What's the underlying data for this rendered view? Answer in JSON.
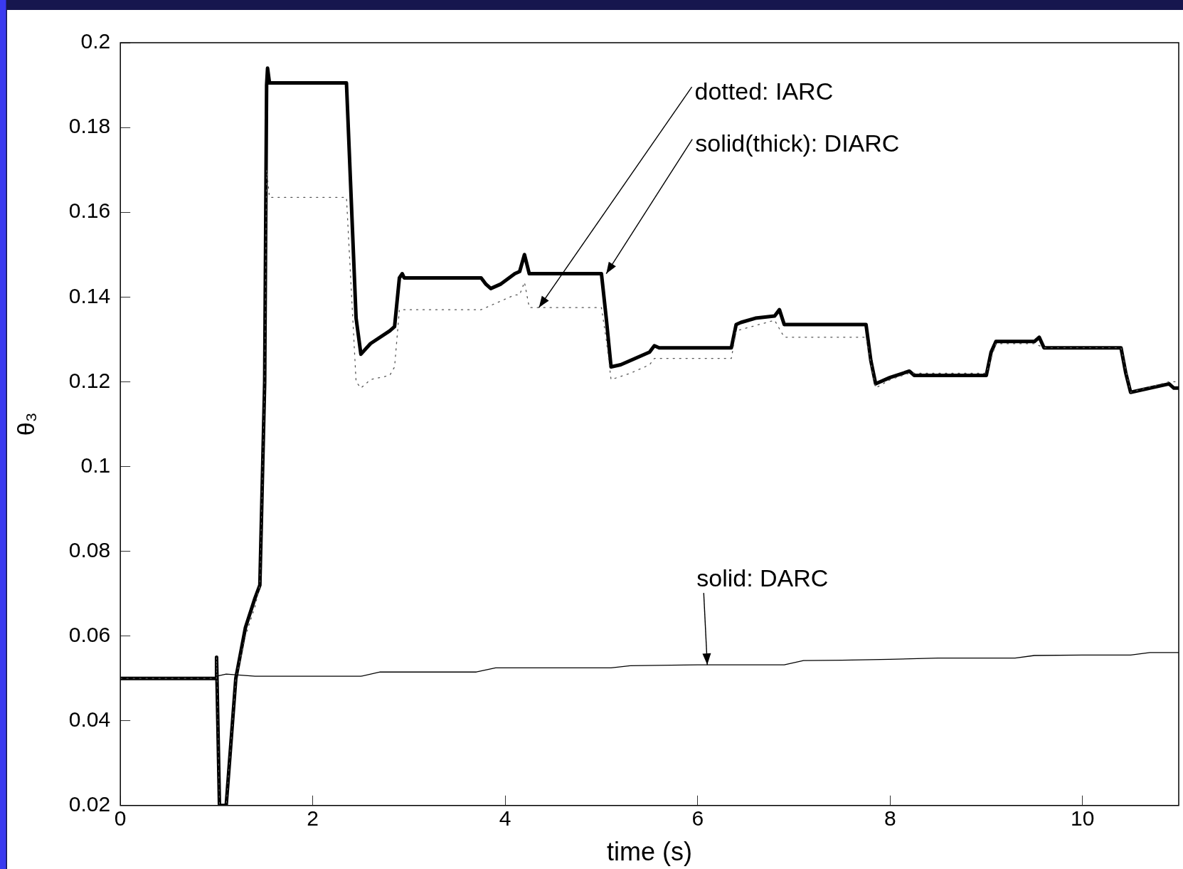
{
  "chart_data": {
    "type": "line",
    "xlabel": "time (s)",
    "ylabel": "θ₃",
    "xlim": [
      0,
      11
    ],
    "xticks": [
      0,
      2,
      4,
      6,
      8,
      10
    ],
    "ylim": [
      0.02,
      0.2
    ],
    "yticks": [
      0.02,
      0.04,
      0.06,
      0.08,
      0.1,
      0.12,
      0.14,
      0.16,
      0.18,
      0.2
    ],
    "marker": "none",
    "series": [
      {
        "color": "#000000",
        "line_style": "solid",
        "x": [
          1.0,
          1.1,
          1.4,
          2.5,
          2.7,
          3.0,
          3.7,
          3.9,
          4.2,
          5.1,
          5.3,
          6.0,
          6.9,
          7.1,
          7.5,
          8.0,
          8.5,
          9.3,
          9.5,
          10.0,
          10.5,
          10.7,
          11.0
        ],
        "values": [
          0.0505,
          0.051,
          0.0505,
          0.0505,
          0.0515,
          0.0515,
          0.0515,
          0.0525,
          0.0525,
          0.0525,
          0.053,
          0.0532,
          0.0532,
          0.0542,
          0.0543,
          0.0545,
          0.0548,
          0.0548,
          0.0554,
          0.0555,
          0.0555,
          0.0561,
          0.0561
        ]
      },
      {
        "color": "#555555",
        "line_style": "dotted",
        "x": [
          0,
          1.0,
          1.0,
          1.03,
          1.1,
          1.15,
          1.2,
          1.3,
          1.4,
          1.45,
          1.5,
          1.52,
          1.55,
          2.35,
          2.45,
          2.5,
          2.6,
          2.8,
          2.85,
          2.9,
          3.75,
          3.85,
          4.1,
          4.15,
          4.2,
          4.25,
          5.0,
          5.05,
          5.1,
          5.3,
          5.5,
          5.55,
          6.35,
          6.4,
          6.8,
          6.9,
          7.75,
          7.85,
          8.0,
          8.2,
          9.0,
          9.1,
          9.5,
          9.6,
          10.4,
          10.5,
          10.9,
          11.0
        ],
        "values": [
          0.05,
          0.05,
          0.055,
          0.02,
          0.02,
          0.035,
          0.05,
          0.06,
          0.067,
          0.072,
          0.12,
          0.17,
          0.1635,
          0.1635,
          0.12,
          0.1185,
          0.1205,
          0.1215,
          0.1235,
          0.137,
          0.137,
          0.138,
          0.1405,
          0.1405,
          0.1435,
          0.1375,
          0.1375,
          0.13,
          0.1205,
          0.122,
          0.124,
          0.1255,
          0.1255,
          0.132,
          0.1345,
          0.1305,
          0.1305,
          0.1185,
          0.1205,
          0.122,
          0.122,
          0.129,
          0.129,
          0.128,
          0.128,
          0.1175,
          0.12,
          0.12
        ]
      },
      {
        "color": "#000000",
        "line_style": "solid",
        "x": [
          0,
          1.0,
          1.0,
          1.03,
          1.1,
          1.15,
          1.2,
          1.3,
          1.4,
          1.45,
          1.5,
          1.52,
          1.53,
          1.55,
          2.35,
          2.45,
          2.5,
          2.6,
          2.8,
          2.85,
          2.9,
          2.93,
          2.95,
          3.75,
          3.8,
          3.85,
          3.95,
          4.1,
          4.15,
          4.2,
          4.25,
          5.0,
          5.05,
          5.1,
          5.2,
          5.5,
          5.55,
          5.6,
          6.35,
          6.4,
          6.45,
          6.6,
          6.8,
          6.85,
          6.9,
          7.75,
          7.8,
          7.85,
          8.0,
          8.2,
          8.25,
          9.0,
          9.05,
          9.1,
          9.5,
          9.55,
          9.6,
          10.4,
          10.45,
          10.5,
          10.7,
          10.9,
          10.95,
          11.0
        ],
        "values": [
          0.05,
          0.05,
          0.055,
          0.02,
          0.02,
          0.035,
          0.05,
          0.062,
          0.069,
          0.072,
          0.12,
          0.19,
          0.194,
          0.1905,
          0.1905,
          0.135,
          0.1265,
          0.129,
          0.132,
          0.133,
          0.1445,
          0.1455,
          0.1445,
          0.1445,
          0.143,
          0.142,
          0.143,
          0.1455,
          0.146,
          0.15,
          0.1455,
          0.1455,
          0.135,
          0.1235,
          0.124,
          0.127,
          0.1285,
          0.128,
          0.128,
          0.1335,
          0.134,
          0.135,
          0.1355,
          0.137,
          0.1335,
          0.1335,
          0.125,
          0.1195,
          0.121,
          0.1225,
          0.1215,
          0.1215,
          0.127,
          0.1295,
          0.1295,
          0.1305,
          0.128,
          0.128,
          0.122,
          0.1175,
          0.1185,
          0.1195,
          0.1185,
          0.1185
        ]
      }
    ],
    "annotations": [
      {
        "text": "dotted: IARC",
        "x": 4.35,
        "y": 0.1375
      },
      {
        "text": "solid(thick): DIARC",
        "x": 5.05,
        "y": 0.1455
      },
      {
        "text": "solid: DARC",
        "x": 6.1,
        "y": 0.0532
      }
    ]
  }
}
